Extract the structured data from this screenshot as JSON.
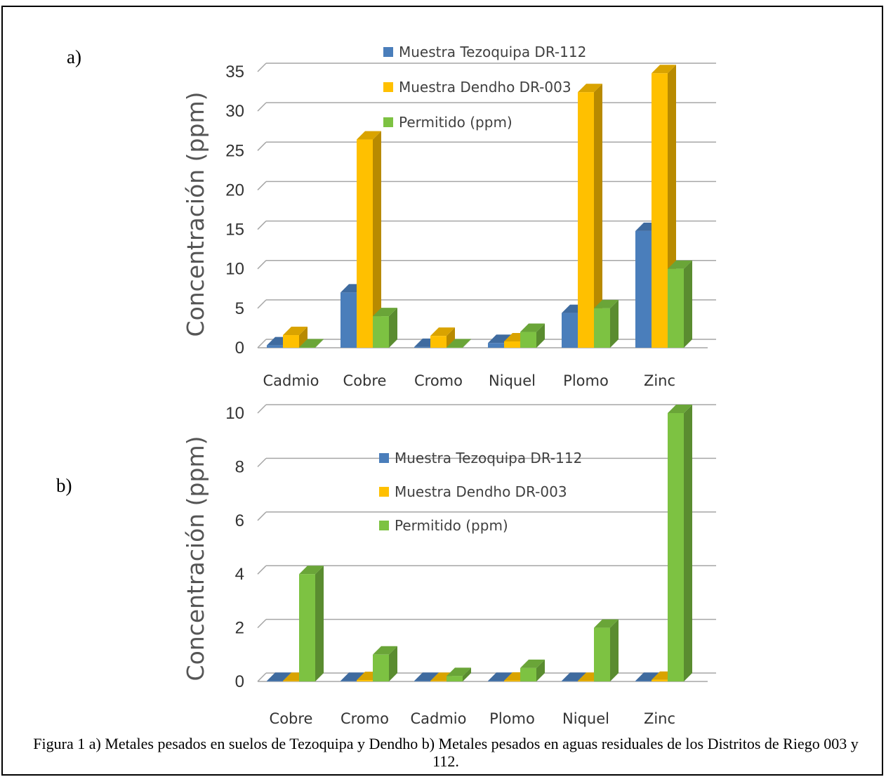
{
  "figure": {
    "caption": "Figura 1 a) Metales pesados en suelos de Tezoquipa y Dendho b) Metales pesados en aguas residuales de los Distritos de Riego 003 y 112.",
    "colors": {
      "tezoquipa": "#4a7ebb",
      "dendho": "#ffc000",
      "permitido": "#7dc242"
    }
  },
  "chart_data": [
    {
      "panel_label": "a)",
      "type": "bar",
      "ylabel": "Concentración (ppm)",
      "ylim": [
        0,
        35
      ],
      "yticks": [
        0,
        5,
        10,
        15,
        20,
        25,
        30,
        35
      ],
      "categories": [
        "Cadmio",
        "Cobre",
        "Cromo",
        "Niquel",
        "Plomo",
        "Zinc"
      ],
      "series": [
        {
          "name": "Muestra Tezoquipa DR-112",
          "color": "#4a7ebb",
          "values": [
            0.3,
            7.0,
            0.1,
            0.6,
            4.4,
            14.8
          ]
        },
        {
          "name": "Muestra Dendho DR-003",
          "color": "#ffc000",
          "values": [
            1.6,
            26.4,
            1.5,
            0.8,
            32.4,
            34.8
          ]
        },
        {
          "name": "Permitido (ppm)",
          "color": "#7dc242",
          "values": [
            0.05,
            4.0,
            0.05,
            2.0,
            5.0,
            10.0
          ]
        }
      ],
      "legend": "top-center",
      "grid": true
    },
    {
      "panel_label": "b)",
      "type": "bar",
      "ylabel": "Concentración  (ppm)",
      "ylim": [
        0,
        10
      ],
      "yticks": [
        0,
        2,
        4,
        6,
        8,
        10
      ],
      "categories": [
        "Cobre",
        "Cromo",
        "Cadmio",
        "Plomo",
        "Niquel",
        "Zinc"
      ],
      "series": [
        {
          "name": "Muestra Tezoquipa DR-112",
          "color": "#4a7ebb",
          "values": [
            0.02,
            0.02,
            0.02,
            0.02,
            0.02,
            0.02
          ]
        },
        {
          "name": "Muestra Dendho DR-003",
          "color": "#ffc000",
          "values": [
            0.02,
            0.05,
            0.02,
            0.03,
            0.02,
            0.06
          ]
        },
        {
          "name": "Permitido (ppm)",
          "color": "#7dc242",
          "values": [
            4.0,
            1.0,
            0.2,
            0.5,
            2.0,
            10.0
          ]
        }
      ],
      "legend": "top-center",
      "grid": true
    }
  ]
}
